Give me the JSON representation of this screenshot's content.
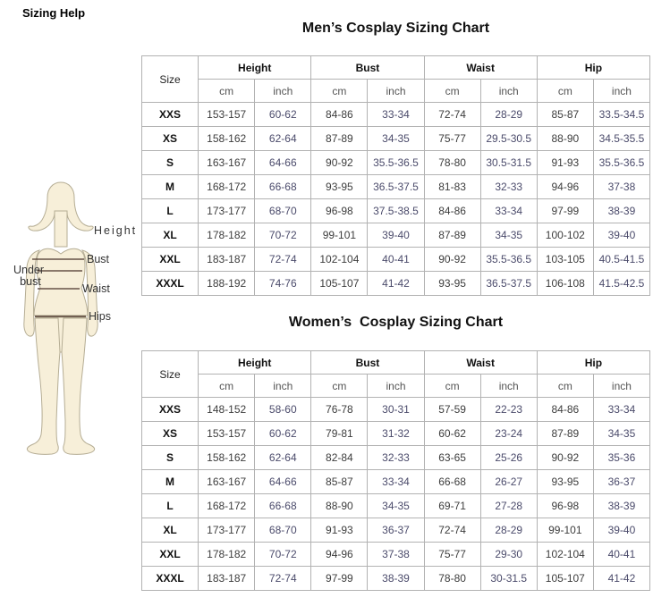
{
  "page": {
    "title": "Sizing Help"
  },
  "figure": {
    "labels": {
      "height": "Height",
      "bust": "Bust",
      "under_bust_line1": "Under",
      "under_bust_line2": "bust",
      "waist": "Waist",
      "hips": "Hips"
    },
    "colors": {
      "body_fill": "#f7efd9",
      "body_outline": "#b5ad94",
      "measure_line": "#4a332a"
    }
  },
  "chart_data": [
    {
      "type": "table",
      "title": "Men’s Cosplay Sizing Chart",
      "columns": {
        "size": "Size",
        "groups": [
          "Height",
          "Bust",
          "Waist",
          "Hip"
        ],
        "units": [
          "cm",
          "inch"
        ]
      },
      "rows": [
        [
          "XXS",
          "153-157",
          "60-62",
          "84-86",
          "33-34",
          "72-74",
          "28-29",
          "85-87",
          "33.5-34.5"
        ],
        [
          "XS",
          "158-162",
          "62-64",
          "87-89",
          "34-35",
          "75-77",
          "29.5-30.5",
          "88-90",
          "34.5-35.5"
        ],
        [
          "S",
          "163-167",
          "64-66",
          "90-92",
          "35.5-36.5",
          "78-80",
          "30.5-31.5",
          "91-93",
          "35.5-36.5"
        ],
        [
          "M",
          "168-172",
          "66-68",
          "93-95",
          "36.5-37.5",
          "81-83",
          "32-33",
          "94-96",
          "37-38"
        ],
        [
          "L",
          "173-177",
          "68-70",
          "96-98",
          "37.5-38.5",
          "84-86",
          "33-34",
          "97-99",
          "38-39"
        ],
        [
          "XL",
          "178-182",
          "70-72",
          "99-101",
          "39-40",
          "87-89",
          "34-35",
          "100-102",
          "39-40"
        ],
        [
          "XXL",
          "183-187",
          "72-74",
          "102-104",
          "40-41",
          "90-92",
          "35.5-36.5",
          "103-105",
          "40.5-41.5"
        ],
        [
          "XXXL",
          "188-192",
          "74-76",
          "105-107",
          "41-42",
          "93-95",
          "36.5-37.5",
          "106-108",
          "41.5-42.5"
        ]
      ]
    },
    {
      "type": "table",
      "title": "Women’s  Cosplay Sizing Chart",
      "columns": {
        "size": "Size",
        "groups": [
          "Height",
          "Bust",
          "Waist",
          "Hip"
        ],
        "units": [
          "cm",
          "inch"
        ]
      },
      "rows": [
        [
          "XXS",
          "148-152",
          "58-60",
          "76-78",
          "30-31",
          "57-59",
          "22-23",
          "84-86",
          "33-34"
        ],
        [
          "XS",
          "153-157",
          "60-62",
          "79-81",
          "31-32",
          "60-62",
          "23-24",
          "87-89",
          "34-35"
        ],
        [
          "S",
          "158-162",
          "62-64",
          "82-84",
          "32-33",
          "63-65",
          "25-26",
          "90-92",
          "35-36"
        ],
        [
          "M",
          "163-167",
          "64-66",
          "85-87",
          "33-34",
          "66-68",
          "26-27",
          "93-95",
          "36-37"
        ],
        [
          "L",
          "168-172",
          "66-68",
          "88-90",
          "34-35",
          "69-71",
          "27-28",
          "96-98",
          "38-39"
        ],
        [
          "XL",
          "173-177",
          "68-70",
          "91-93",
          "36-37",
          "72-74",
          "28-29",
          "99-101",
          "39-40"
        ],
        [
          "XXL",
          "178-182",
          "70-72",
          "94-96",
          "37-38",
          "75-77",
          "29-30",
          "102-104",
          "40-41"
        ],
        [
          "XXXL",
          "183-187",
          "72-74",
          "97-99",
          "38-39",
          "78-80",
          "30-31.5",
          "105-107",
          "41-42"
        ]
      ]
    }
  ]
}
